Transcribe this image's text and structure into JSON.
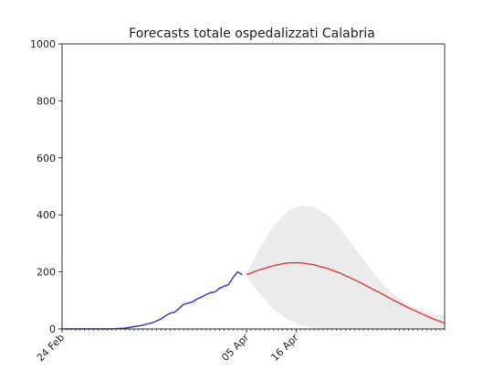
{
  "chart_data": {
    "type": "line",
    "title": "Forecasts totale ospedalizzati Calabria",
    "xlabel": "",
    "ylabel": "",
    "ylim": [
      0,
      1000
    ],
    "xlim": [
      "2020-02-24",
      "2020-05-19"
    ],
    "grid": false,
    "y_ticks": [
      0,
      200,
      400,
      600,
      800,
      1000
    ],
    "x_ticks": [
      {
        "date": "2020-02-24",
        "label": "24 Feb"
      },
      {
        "date": "2020-04-05",
        "label": "05 Apr"
      },
      {
        "date": "2020-04-16",
        "label": "16 Apr"
      }
    ],
    "minor_tick_step_days": 1,
    "colors": {
      "observed": "#3a3ad6",
      "forecast": "#e8453c",
      "band": "#ebebeb"
    },
    "observed": {
      "x": [
        "2020-02-24",
        "2020-02-26",
        "2020-02-28",
        "2020-03-01",
        "2020-03-03",
        "2020-03-05",
        "2020-03-07",
        "2020-03-09",
        "2020-03-11",
        "2020-03-12",
        "2020-03-13",
        "2020-03-14",
        "2020-03-15",
        "2020-03-16",
        "2020-03-17",
        "2020-03-18",
        "2020-03-19",
        "2020-03-20",
        "2020-03-21",
        "2020-03-22",
        "2020-03-23",
        "2020-03-24",
        "2020-03-25",
        "2020-03-26",
        "2020-03-27",
        "2020-03-28",
        "2020-03-29",
        "2020-03-30",
        "2020-03-31",
        "2020-04-01",
        "2020-04-02",
        "2020-04-03",
        "2020-04-04"
      ],
      "y": [
        0,
        0,
        0,
        0,
        0,
        0,
        1,
        3,
        8,
        10,
        13,
        17,
        21,
        28,
        35,
        46,
        55,
        58,
        72,
        86,
        90,
        95,
        105,
        112,
        120,
        127,
        130,
        143,
        150,
        155,
        180,
        200,
        190
      ]
    },
    "forecast": {
      "x": [
        "2020-04-05",
        "2020-04-08",
        "2020-04-11",
        "2020-04-14",
        "2020-04-17",
        "2020-04-20",
        "2020-04-23",
        "2020-04-26",
        "2020-04-29",
        "2020-05-02",
        "2020-05-05",
        "2020-05-08",
        "2020-05-11",
        "2020-05-14",
        "2020-05-17",
        "2020-05-19"
      ],
      "y": [
        190,
        208,
        222,
        231,
        232,
        225,
        212,
        194,
        172,
        148,
        123,
        98,
        74,
        52,
        32,
        20
      ],
      "upper": [
        195,
        285,
        362,
        412,
        432,
        428,
        400,
        348,
        285,
        220,
        162,
        118,
        85,
        63,
        50,
        45
      ],
      "lower": [
        185,
        120,
        70,
        35,
        12,
        3,
        0,
        0,
        0,
        0,
        0,
        0,
        0,
        0,
        0,
        0
      ]
    }
  }
}
